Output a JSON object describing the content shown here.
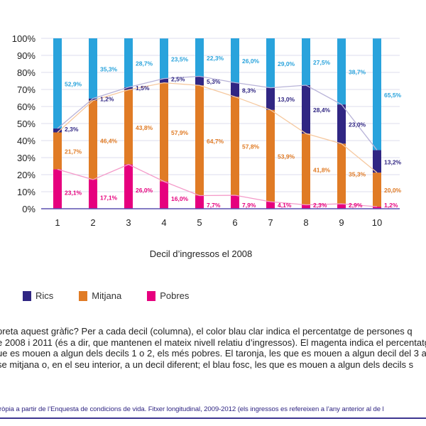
{
  "chart_data": {
    "type": "bar",
    "stacked": true,
    "categories": [
      "1",
      "2",
      "3",
      "4",
      "5",
      "6",
      "7",
      "8",
      "9",
      "10"
    ],
    "xlabel": "Decil d’ingressos el 2008",
    "ylabel": "",
    "ylim": [
      0,
      100
    ],
    "yticks": [
      "0%",
      "10%",
      "20%",
      "30%",
      "40%",
      "50%",
      "60%",
      "70%",
      "80%",
      "90%",
      "100%"
    ],
    "grid": true,
    "legend_position": "bottom-left",
    "series": [
      {
        "name": "Pobres",
        "color": "#e6007e",
        "values": [
          23.1,
          17.1,
          26.0,
          16.0,
          7.7,
          7.9,
          4.1,
          2.3,
          2.9,
          1.2
        ],
        "labels": [
          "23,1%",
          "17,1%",
          "26,0%",
          "16,0%",
          "7,7%",
          "7,9%",
          "4,1%",
          "2,3%",
          "2,9%",
          "1,2%"
        ]
      },
      {
        "name": "Mitjana",
        "color": "#e07b25",
        "values": [
          21.7,
          46.4,
          43.8,
          57.9,
          64.7,
          57.8,
          53.9,
          41.8,
          35.3,
          20.0
        ],
        "labels": [
          "21,7%",
          "46,4%",
          "43,8%",
          "57,9%",
          "64,7%",
          "57,8%",
          "53,9%",
          "41,8%",
          "35,3%",
          "20,0%"
        ]
      },
      {
        "name": "Rics",
        "color": "#302683",
        "values": [
          2.3,
          1.2,
          1.5,
          2.5,
          5.3,
          8.3,
          13.0,
          28.4,
          23.0,
          13.2
        ],
        "labels": [
          "2,3%",
          "1,2%",
          "1,5%",
          "2,5%",
          "5,3%",
          "8,3%",
          "13,0%",
          "28,4%",
          "23,0%",
          "13,2%"
        ]
      },
      {
        "color": "#29a3dc",
        "values": [
          52.9,
          35.3,
          28.7,
          23.5,
          22.3,
          26.0,
          29.0,
          27.5,
          38.7,
          65.5
        ],
        "labels": [
          "52,9%",
          "35,3%",
          "28,7%",
          "23,5%",
          "22,3%",
          "26,0%",
          "29,0%",
          "27,5%",
          "38,7%",
          "65,5%"
        ]
      }
    ]
  },
  "legend": [
    {
      "label": "Rics",
      "color": "#302683"
    },
    {
      "label": "Mitjana",
      "color": "#e07b25"
    },
    {
      "label": "Pobres",
      "color": "#e6007e"
    }
  ],
  "description": [
    "preta aquest gràfic? Per a cada decil (columna), el color blau clar indica el percentatge de persones q",
    "e 2008 i 2011 (és a dir, que mantenen el mateix nivell relatiu d’ingressos). El magenta indica el percentatge",
    "ue es mouen a algun dels decils 1 o 2, els més pobres. El taronja, les que es mouen a algun decil del 3 al 8",
    "se mitjana o, en el seu interior, a un decil diferent; el blau fosc, les que es mouen a algun dels decils s"
  ],
  "source": "ròpia a partir de l’Enquesta de condicions de vida. Fitxer longitudinal, 2009-2012 (els ingressos es refereixen a l’any anterior al de l"
}
